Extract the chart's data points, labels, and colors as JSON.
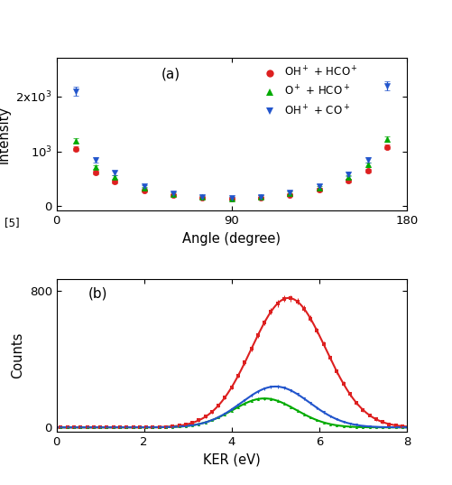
{
  "panel_a": {
    "title": "(a)",
    "xlabel": "Angle (degree)",
    "ylabel": "Intensity",
    "xlim": [
      0,
      180
    ],
    "ylim": [
      -80,
      2700
    ],
    "yticks": [
      0,
      1000,
      2000
    ],
    "ytick_labels": [
      "0",
      "10$^3$",
      "2x10$^3$"
    ],
    "xticks": [
      0,
      90,
      180
    ],
    "angles": [
      10,
      20,
      30,
      45,
      60,
      75,
      90,
      105,
      120,
      135,
      150,
      160,
      170
    ],
    "red_data": [
      1050,
      620,
      450,
      290,
      200,
      150,
      130,
      155,
      210,
      300,
      460,
      650,
      1080
    ],
    "red_err": [
      40,
      30,
      30,
      25,
      20,
      18,
      17,
      18,
      22,
      28,
      32,
      38,
      42
    ],
    "green_data": [
      1200,
      720,
      530,
      330,
      225,
      170,
      145,
      175,
      240,
      340,
      530,
      760,
      1220
    ],
    "green_err": [
      45,
      35,
      32,
      28,
      22,
      20,
      19,
      21,
      25,
      30,
      35,
      42,
      46
    ],
    "blue_data": [
      2100,
      850,
      610,
      360,
      240,
      175,
      148,
      178,
      250,
      370,
      590,
      840,
      2200
    ],
    "blue_err": [
      80,
      50,
      42,
      32,
      26,
      22,
      21,
      24,
      28,
      34,
      40,
      48,
      85
    ],
    "red_color": "#dd2020",
    "green_color": "#00aa00",
    "blue_color": "#2255cc",
    "legend_labels": [
      "OH$^+$ + HCO$^+$",
      "O$^+$ + HCO$^+$",
      "OH$^+$ + CO$^+$"
    ],
    "legend_markers": [
      "o",
      "^",
      "v"
    ]
  },
  "panel_b": {
    "title": "(b)",
    "xlabel": "KER (eV)",
    "ylabel": "Counts",
    "xlim": [
      0,
      8
    ],
    "ylim": [
      -25,
      870
    ],
    "yticks": [
      0,
      800
    ],
    "ytick_labels": [
      "0",
      "800"
    ],
    "xticks": [
      0,
      2,
      4,
      6,
      8
    ],
    "ref_label": "[5]",
    "red_amp": 760,
    "red_mu": 5.3,
    "red_sigma": 0.85,
    "green_amp": 170,
    "green_mu": 4.75,
    "green_sigma": 0.72,
    "blue_amp": 240,
    "blue_mu": 5.0,
    "blue_sigma": 0.78,
    "red_color": "#dd2020",
    "green_color": "#00aa00",
    "blue_color": "#2255cc"
  }
}
